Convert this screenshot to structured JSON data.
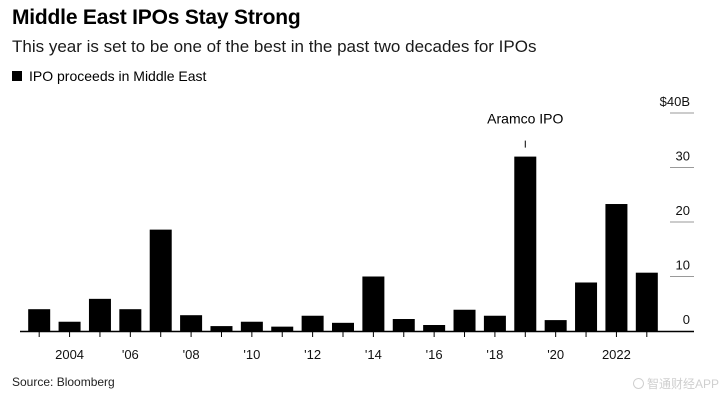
{
  "header": {
    "title": "Middle East IPOs Stay Strong",
    "subtitle": "This year is set to be one of the best in the past two decades for IPOs",
    "legend_label": "IPO proceeds in Middle East"
  },
  "footer": {
    "source": "Source: Bloomberg",
    "watermark": "智通财经APP"
  },
  "colors": {
    "bar": "#000000",
    "gridline": "#9a9a9a",
    "baseline": "#000000"
  },
  "chart_data": {
    "type": "bar",
    "title": "Middle East IPOs Stay Strong",
    "subtitle": "This year is set to be one of the best in the past two decades for IPOs",
    "xlabel": "",
    "ylabel": "",
    "legend": [
      "IPO proceeds in Middle East"
    ],
    "legend_position": "top-left",
    "grid": true,
    "ylim": [
      0,
      40
    ],
    "y_ticks": [
      {
        "value": 0,
        "label": "0"
      },
      {
        "value": 10,
        "label": "10"
      },
      {
        "value": 20,
        "label": "20"
      },
      {
        "value": 30,
        "label": "30"
      },
      {
        "value": 40,
        "label": "$40B"
      }
    ],
    "categories": [
      2003,
      2004,
      2005,
      2006,
      2007,
      2008,
      2009,
      2010,
      2011,
      2012,
      2013,
      2014,
      2015,
      2016,
      2017,
      2018,
      2019,
      2020,
      2021,
      2022,
      2023
    ],
    "values": [
      4.0,
      1.7,
      5.9,
      4.0,
      18.6,
      2.9,
      0.9,
      1.7,
      0.8,
      2.8,
      1.5,
      10.0,
      2.2,
      1.1,
      3.9,
      2.8,
      32.0,
      2.0,
      8.9,
      23.3,
      10.7
    ],
    "x_tick_labels": [
      {
        "x": 2004,
        "label": "2004"
      },
      {
        "x": 2006,
        "label": "'06"
      },
      {
        "x": 2008,
        "label": "'08"
      },
      {
        "x": 2010,
        "label": "'10"
      },
      {
        "x": 2012,
        "label": "'12"
      },
      {
        "x": 2014,
        "label": "'14"
      },
      {
        "x": 2016,
        "label": "'16"
      },
      {
        "x": 2018,
        "label": "'18"
      },
      {
        "x": 2020,
        "label": "'20"
      },
      {
        "x": 2022,
        "label": "2022"
      }
    ],
    "annotations": [
      {
        "x": 2019,
        "text": "Aramco IPO"
      }
    ]
  }
}
